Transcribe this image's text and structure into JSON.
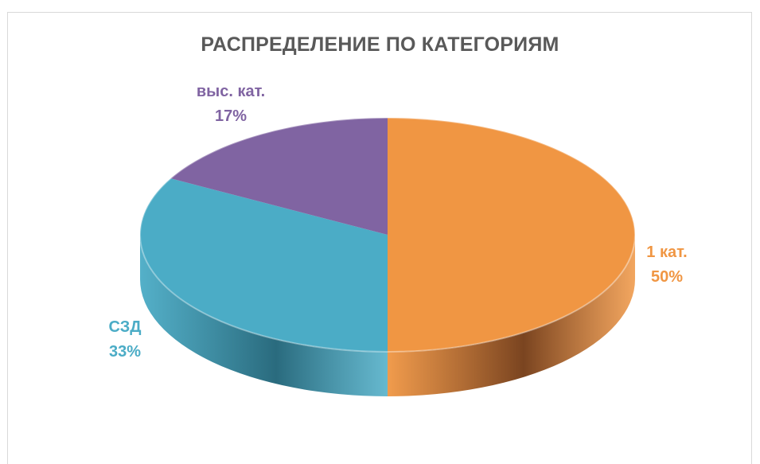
{
  "chart_data": {
    "type": "pie",
    "title": "РАСПРЕДЕЛЕНИЕ ПО КАТЕГОРИЯМ",
    "three_d": true,
    "slices": [
      {
        "label": "1 кат.",
        "value": 50,
        "percent_label": "50%",
        "color": "#F09643",
        "side_color": "#7A4420"
      },
      {
        "label": "СЗД",
        "value": 33,
        "percent_label": "33%",
        "color": "#4BACC6",
        "side_color": "#2A6B7E"
      },
      {
        "label": "выс. кат.",
        "value": 17,
        "percent_label": "17%",
        "color": "#8064A2",
        "side_color": "#4E3C66"
      }
    ]
  }
}
